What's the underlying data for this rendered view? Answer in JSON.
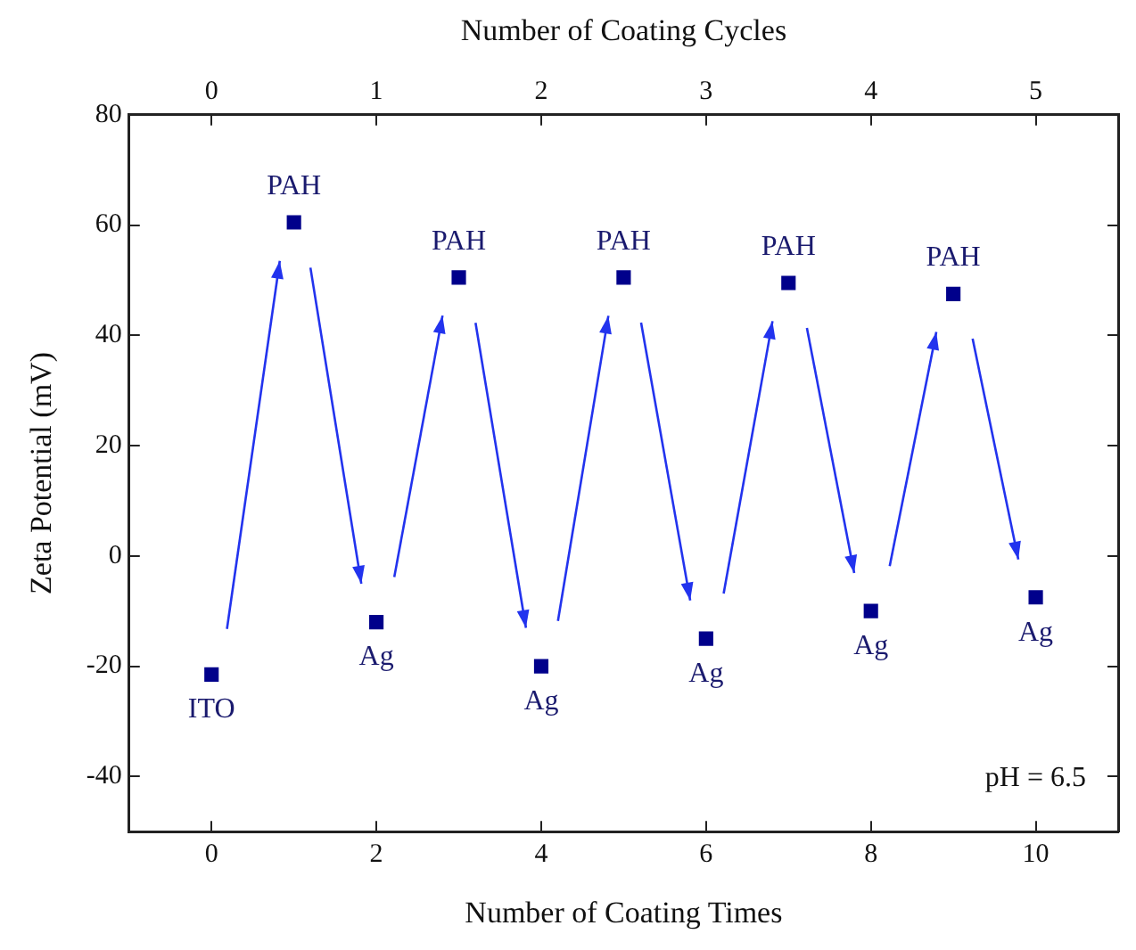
{
  "chart_data": {
    "type": "scatter",
    "xlabel": "Number of Coating Times",
    "x2label": "Number of Coating Cycles",
    "ylabel": "Zeta Potential (mV)",
    "x": [
      0,
      1,
      2,
      3,
      4,
      5,
      6,
      7,
      8,
      9,
      10
    ],
    "series": [
      {
        "color": "#00008b",
        "values": [
          -21.5,
          60.5,
          -12,
          50.5,
          -20,
          50.5,
          -15,
          49.5,
          -10,
          47.5,
          -7.5
        ]
      }
    ],
    "marker": "square",
    "grid": false,
    "legend": false,
    "xlim": [
      -1,
      11
    ],
    "xticks": [
      0,
      2,
      4,
      6,
      8,
      10
    ],
    "x2lim": [
      -0.5,
      5.5
    ],
    "x2ticks": [
      0,
      1,
      2,
      3,
      4,
      5
    ],
    "ylim": [
      -50,
      80
    ],
    "yticks": [
      -40,
      -20,
      0,
      20,
      40,
      60,
      80
    ],
    "annotations": [
      {
        "text": "ITO",
        "x": 0,
        "y": -21.5
      },
      {
        "text": "PAH",
        "x": 1,
        "y": 60.5
      },
      {
        "text": "Ag",
        "x": 2,
        "y": -12
      },
      {
        "text": "PAH",
        "x": 3,
        "y": 50.5
      },
      {
        "text": "Ag",
        "x": 4,
        "y": -20
      },
      {
        "text": "PAH",
        "x": 5,
        "y": 50.5
      },
      {
        "text": "Ag",
        "x": 6,
        "y": -15
      },
      {
        "text": "PAH",
        "x": 7,
        "y": 49.5
      },
      {
        "text": "Ag",
        "x": 8,
        "y": -10
      },
      {
        "text": "PAH",
        "x": 9,
        "y": 47.5
      },
      {
        "text": "Ag",
        "x": 10,
        "y": -7.5
      },
      "pH = 6.5"
    ]
  }
}
